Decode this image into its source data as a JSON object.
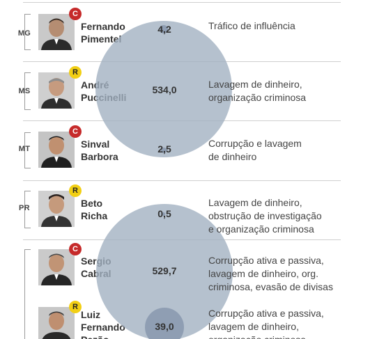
{
  "rows": [
    {
      "state": "MG",
      "badge": "C",
      "name": [
        "Fernando",
        "Pimentel"
      ],
      "value": "4,2",
      "crime": [
        "Tráfico de influência"
      ]
    },
    {
      "state": "MS",
      "badge": "R",
      "name": [
        "André",
        "Puccinelli"
      ],
      "value": "534,0",
      "crime": [
        "Lavagem de dinheiro,",
        "organização criminosa"
      ]
    },
    {
      "state": "MT",
      "badge": "C",
      "name": [
        "Sinval",
        "Barbora"
      ],
      "value": "2,5",
      "crime": [
        "Corrupção e lavagem",
        "de dinheiro"
      ]
    },
    {
      "state": "PR",
      "badge": "R",
      "name": [
        "Beto",
        "Richa"
      ],
      "value": "0,5",
      "crime": [
        "Lavagem de dinheiro,",
        "obstrução de investigação",
        "e organização criminosa"
      ]
    },
    {
      "state": "",
      "badge": "C",
      "name": [
        "Sergio",
        "Cabral"
      ],
      "value": "529,7",
      "crime": [
        "Corrupção ativa e passiva,",
        "lavagem de dinheiro, org.",
        "criminosa, evasão de divisas"
      ]
    },
    {
      "state": "",
      "badge": "R",
      "name": [
        "Luiz",
        "Fernando",
        "Pezão"
      ],
      "value": "39,0",
      "crime": [
        "Corrupção ativa e passiva,",
        "lavagem de dinheiro,",
        "organização criminosa"
      ]
    }
  ],
  "colors": {
    "badge_c": "#c62a2a",
    "badge_r": "#f2cf14",
    "bubble": "#a0b0c0",
    "bubble_small": "#8f9eb3"
  }
}
